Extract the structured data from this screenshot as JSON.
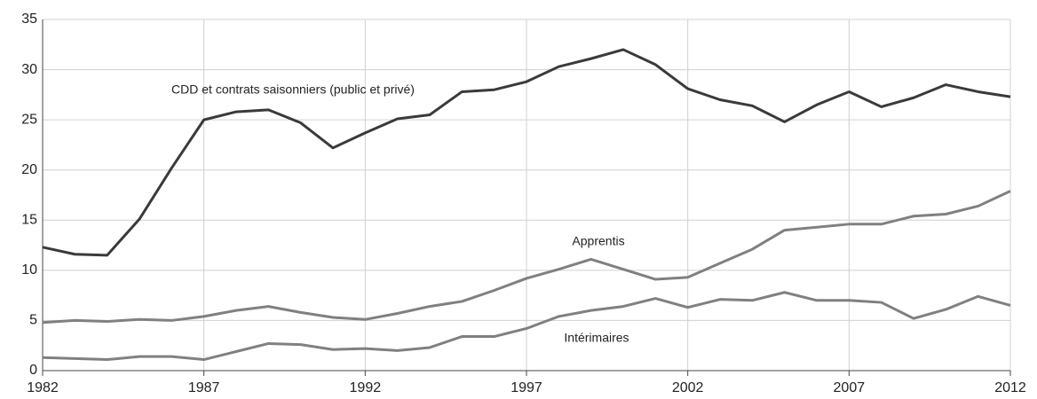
{
  "chart_data": {
    "type": "line",
    "x": [
      1982,
      1983,
      1984,
      1985,
      1986,
      1987,
      1988,
      1989,
      1990,
      1991,
      1992,
      1993,
      1994,
      1995,
      1996,
      1997,
      1998,
      1999,
      2000,
      2001,
      2002,
      2003,
      2004,
      2005,
      2006,
      2007,
      2008,
      2009,
      2010,
      2011,
      2012
    ],
    "series": [
      {
        "name": "CDD et contrats saisonniers (public et privé)",
        "color": "#3a3a3a",
        "values": [
          12.3,
          11.6,
          11.5,
          15.1,
          20.2,
          25.0,
          25.8,
          26.0,
          24.7,
          22.2,
          23.7,
          25.1,
          25.5,
          27.8,
          28.0,
          28.8,
          30.3,
          31.1,
          32.0,
          30.5,
          28.1,
          27.0,
          26.4,
          24.8,
          26.5,
          27.8,
          26.3,
          27.2,
          28.5,
          27.8,
          27.3
        ]
      },
      {
        "name": "Apprentis",
        "color": "#808080",
        "values": [
          4.8,
          5.0,
          4.9,
          5.1,
          5.0,
          5.4,
          6.0,
          6.4,
          5.8,
          5.3,
          5.1,
          5.7,
          6.4,
          6.9,
          8.0,
          9.2,
          10.1,
          11.1,
          10.1,
          9.1,
          9.3,
          10.7,
          12.1,
          14.0,
          14.3,
          14.6,
          14.6,
          15.4,
          15.6,
          16.4,
          17.9
        ]
      },
      {
        "name": "Intérimaires",
        "color": "#808080",
        "values": [
          1.3,
          1.2,
          1.1,
          1.4,
          1.4,
          1.1,
          1.9,
          2.7,
          2.6,
          2.1,
          2.2,
          2.0,
          2.3,
          3.4,
          3.4,
          4.2,
          5.4,
          6.0,
          6.4,
          7.2,
          6.3,
          7.1,
          7.0,
          7.8,
          7.0,
          7.0,
          6.8,
          5.2,
          6.1,
          7.4,
          6.5
        ]
      }
    ],
    "xlim": [
      1982,
      2012
    ],
    "xticks": [
      1982,
      1987,
      1992,
      1997,
      2002,
      2007,
      2012
    ],
    "ylim": [
      0,
      35
    ],
    "yticks": [
      0,
      5,
      10,
      15,
      20,
      25,
      30,
      35
    ],
    "grid": true
  }
}
